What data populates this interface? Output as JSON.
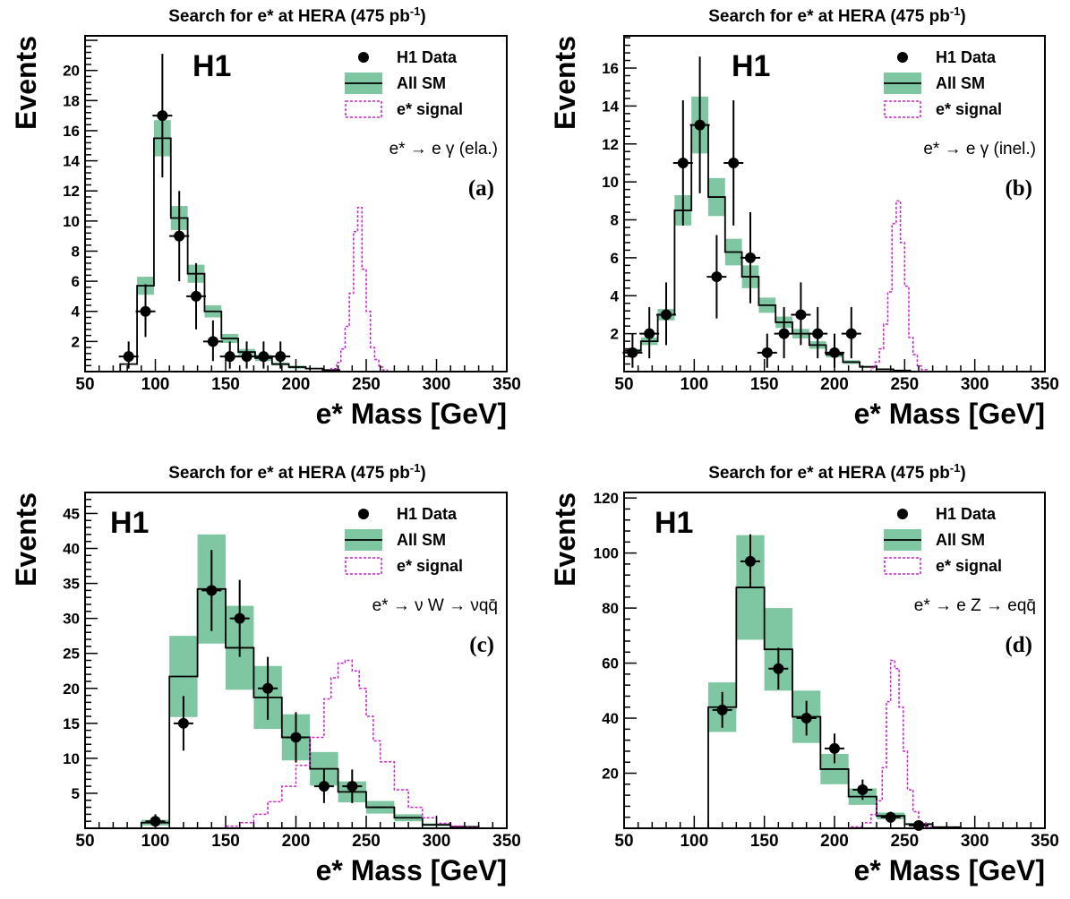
{
  "colors": {
    "sm_band": "#7fc6a2",
    "signal": "#cc22cc",
    "data": "#000000",
    "axis": "#000000"
  },
  "chart_data": [
    {
      "id": "a",
      "type": "histogram",
      "title": "Search for e* at HERA (475 pb",
      "title_sup": "-1",
      "title_end": ")",
      "experiment": "H1",
      "panel_tag": "(a)",
      "process": "e* → e γ (ela.)",
      "xlabel": "e* Mass [GeV]",
      "ylabel": "Events",
      "legend": [
        "H1 Data",
        "All SM",
        "e* signal"
      ],
      "xlim": [
        50,
        350
      ],
      "ylim": [
        0,
        22.3
      ],
      "xticks": [
        50,
        100,
        150,
        200,
        250,
        300,
        350
      ],
      "yticks": [
        2,
        4,
        6,
        8,
        10,
        12,
        14,
        16,
        18,
        20
      ],
      "sm_bins": [
        {
          "x0": 75,
          "x1": 87,
          "y": 0.5,
          "err": 0
        },
        {
          "x0": 87,
          "x1": 99,
          "y": 5.7,
          "err": 0.6
        },
        {
          "x0": 99,
          "x1": 111,
          "y": 15.5,
          "err": 1.2
        },
        {
          "x0": 111,
          "x1": 123,
          "y": 10.2,
          "err": 0.8
        },
        {
          "x0": 123,
          "x1": 135,
          "y": 6.5,
          "err": 0.6
        },
        {
          "x0": 135,
          "x1": 147,
          "y": 4.0,
          "err": 0.4
        },
        {
          "x0": 147,
          "x1": 159,
          "y": 2.2,
          "err": 0.3
        },
        {
          "x0": 159,
          "x1": 171,
          "y": 1.3,
          "err": 0.2
        },
        {
          "x0": 171,
          "x1": 183,
          "y": 0.9,
          "err": 0.2
        },
        {
          "x0": 183,
          "x1": 195,
          "y": 0.5,
          "err": 0.1
        },
        {
          "x0": 195,
          "x1": 207,
          "y": 0.3,
          "err": 0.1
        },
        {
          "x0": 207,
          "x1": 219,
          "y": 0.2,
          "err": 0.05
        },
        {
          "x0": 219,
          "x1": 231,
          "y": 0.1,
          "err": 0.05
        }
      ],
      "data_points": [
        {
          "x": 81,
          "y": 1,
          "ey_lo": 0.8,
          "ey_hi": 1.0
        },
        {
          "x": 93,
          "y": 4,
          "ey_lo": 1.7,
          "ey_hi": 1.8
        },
        {
          "x": 105,
          "y": 17,
          "ey_lo": 4.1,
          "ey_hi": 4.1
        },
        {
          "x": 117,
          "y": 9,
          "ey_lo": 3.0,
          "ey_hi": 3.0
        },
        {
          "x": 129,
          "y": 5,
          "ey_lo": 2.2,
          "ey_hi": 2.2
        },
        {
          "x": 141,
          "y": 2,
          "ey_lo": 1.3,
          "ey_hi": 1.4
        },
        {
          "x": 153,
          "y": 1,
          "ey_lo": 0.8,
          "ey_hi": 1.0
        },
        {
          "x": 165,
          "y": 1,
          "ey_lo": 0.8,
          "ey_hi": 1.0
        },
        {
          "x": 177,
          "y": 1,
          "ey_lo": 0.8,
          "ey_hi": 1.0
        },
        {
          "x": 189,
          "y": 1,
          "ey_lo": 0.8,
          "ey_hi": 1.0
        }
      ],
      "signal": {
        "x": [
          70,
          150,
          220,
          225,
          229,
          232,
          235,
          238,
          241,
          244,
          247,
          250,
          253,
          256,
          259,
          262,
          265,
          280,
          350
        ],
        "y": [
          0,
          0,
          0,
          0.2,
          0.6,
          1.5,
          3.0,
          5.2,
          9.3,
          10.9,
          6.8,
          4.0,
          1.6,
          0.8,
          0.3,
          0.1,
          0,
          0,
          0
        ]
      },
      "signal_xmin": 70
    },
    {
      "id": "b",
      "type": "histogram",
      "title": "Search for e* at HERA (475 pb",
      "title_sup": "-1",
      "title_end": ")",
      "experiment": "H1",
      "panel_tag": "(b)",
      "process": "e* → e γ (inel.)",
      "xlabel": "e* Mass [GeV]",
      "ylabel": "Events",
      "legend": [
        "H1 Data",
        "All SM",
        "e* signal"
      ],
      "xlim": [
        50,
        350
      ],
      "ylim": [
        0,
        17.7
      ],
      "xticks": [
        50,
        100,
        150,
        200,
        250,
        300,
        350
      ],
      "yticks": [
        2,
        4,
        6,
        8,
        10,
        12,
        14,
        16
      ],
      "sm_bins": [
        {
          "x0": 50,
          "x1": 62,
          "y": 1.1,
          "err": 0.1
        },
        {
          "x0": 62,
          "x1": 74,
          "y": 1.6,
          "err": 0.2
        },
        {
          "x0": 74,
          "x1": 86,
          "y": 3.0,
          "err": 0.3
        },
        {
          "x0": 86,
          "x1": 98,
          "y": 8.5,
          "err": 0.8
        },
        {
          "x0": 98,
          "x1": 110,
          "y": 13.0,
          "err": 1.5
        },
        {
          "x0": 110,
          "x1": 122,
          "y": 9.2,
          "err": 1.0
        },
        {
          "x0": 122,
          "x1": 134,
          "y": 6.3,
          "err": 0.7
        },
        {
          "x0": 134,
          "x1": 146,
          "y": 5.0,
          "err": 0.6
        },
        {
          "x0": 146,
          "x1": 158,
          "y": 3.5,
          "err": 0.4
        },
        {
          "x0": 158,
          "x1": 170,
          "y": 2.6,
          "err": 0.3
        },
        {
          "x0": 170,
          "x1": 182,
          "y": 2.0,
          "err": 0.25
        },
        {
          "x0": 182,
          "x1": 194,
          "y": 1.4,
          "err": 0.2
        },
        {
          "x0": 194,
          "x1": 206,
          "y": 0.9,
          "err": 0.15
        },
        {
          "x0": 206,
          "x1": 218,
          "y": 0.5,
          "err": 0.1
        },
        {
          "x0": 218,
          "x1": 230,
          "y": 0.25,
          "err": 0.05
        },
        {
          "x0": 230,
          "x1": 242,
          "y": 0.12,
          "err": 0.03
        },
        {
          "x0": 242,
          "x1": 254,
          "y": 0.06,
          "err": 0.02
        }
      ],
      "data_points": [
        {
          "x": 56,
          "y": 1,
          "ey_lo": 0.8,
          "ey_hi": 1.0
        },
        {
          "x": 68,
          "y": 2,
          "ey_lo": 1.3,
          "ey_hi": 1.4
        },
        {
          "x": 80,
          "y": 3,
          "ey_lo": 1.6,
          "ey_hi": 1.7
        },
        {
          "x": 92,
          "y": 11,
          "ey_lo": 3.3,
          "ey_hi": 3.3
        },
        {
          "x": 104,
          "y": 13,
          "ey_lo": 3.6,
          "ey_hi": 3.6
        },
        {
          "x": 116,
          "y": 5,
          "ey_lo": 2.2,
          "ey_hi": 2.2
        },
        {
          "x": 128,
          "y": 11,
          "ey_lo": 3.3,
          "ey_hi": 3.3
        },
        {
          "x": 140,
          "y": 6,
          "ey_lo": 2.4,
          "ey_hi": 2.4
        },
        {
          "x": 152,
          "y": 1,
          "ey_lo": 0.8,
          "ey_hi": 1.0
        },
        {
          "x": 164,
          "y": 2,
          "ey_lo": 1.3,
          "ey_hi": 1.4
        },
        {
          "x": 176,
          "y": 3,
          "ey_lo": 1.6,
          "ey_hi": 1.7
        },
        {
          "x": 188,
          "y": 2,
          "ey_lo": 1.3,
          "ey_hi": 1.4
        },
        {
          "x": 200,
          "y": 1,
          "ey_lo": 0.8,
          "ey_hi": 1.0
        },
        {
          "x": 212,
          "y": 2,
          "ey_lo": 1.3,
          "ey_hi": 1.4
        }
      ],
      "signal": {
        "x": [
          50,
          150,
          222,
          226,
          229,
          232,
          235,
          238,
          241,
          244,
          247,
          250,
          253,
          256,
          259,
          262,
          266,
          280,
          350
        ],
        "y": [
          0,
          0,
          0,
          0.2,
          0.5,
          1.2,
          2.5,
          4.2,
          7.8,
          9.0,
          6.8,
          4.5,
          1.8,
          0.9,
          0.3,
          0.1,
          0,
          0,
          0
        ]
      },
      "signal_xmin": 50
    },
    {
      "id": "c",
      "type": "histogram",
      "title": "Search for e* at HERA (475 pb",
      "title_sup": "-1",
      "title_end": ")",
      "experiment": "H1",
      "panel_tag": "(c)",
      "process": "e* → ν W → νqq̄",
      "xlabel": "e* Mass [GeV]",
      "ylabel": "Events",
      "legend": [
        "H1 Data",
        "All SM",
        "e* signal"
      ],
      "xlim": [
        50,
        350
      ],
      "ylim": [
        0,
        48
      ],
      "xticks": [
        50,
        100,
        150,
        200,
        250,
        300,
        350
      ],
      "yticks": [
        5,
        10,
        15,
        20,
        25,
        30,
        35,
        40,
        45
      ],
      "sm_bins": [
        {
          "x0": 90,
          "x1": 110,
          "y": 0.8,
          "err": 0.4
        },
        {
          "x0": 110,
          "x1": 130,
          "y": 21.7,
          "err": 5.8
        },
        {
          "x0": 130,
          "x1": 150,
          "y": 34.2,
          "err": 7.8
        },
        {
          "x0": 150,
          "x1": 170,
          "y": 25.8,
          "err": 6.0
        },
        {
          "x0": 170,
          "x1": 190,
          "y": 18.7,
          "err": 4.5
        },
        {
          "x0": 190,
          "x1": 210,
          "y": 13.0,
          "err": 3.3
        },
        {
          "x0": 210,
          "x1": 230,
          "y": 8.5,
          "err": 2.4
        },
        {
          "x0": 230,
          "x1": 250,
          "y": 5.2,
          "err": 1.5
        },
        {
          "x0": 250,
          "x1": 270,
          "y": 3.0,
          "err": 0.9
        },
        {
          "x0": 270,
          "x1": 290,
          "y": 1.5,
          "err": 0.5
        },
        {
          "x0": 290,
          "x1": 310,
          "y": 0.5,
          "err": 0.2
        },
        {
          "x0": 310,
          "x1": 330,
          "y": 0.2,
          "err": 0.1
        }
      ],
      "data_points": [
        {
          "x": 100,
          "y": 1,
          "ey_lo": 0.8,
          "ey_hi": 1.0
        },
        {
          "x": 120,
          "y": 15,
          "ey_lo": 3.9,
          "ey_hi": 3.9
        },
        {
          "x": 140,
          "y": 34,
          "ey_lo": 5.8,
          "ey_hi": 5.8
        },
        {
          "x": 160,
          "y": 30,
          "ey_lo": 5.5,
          "ey_hi": 5.5
        },
        {
          "x": 180,
          "y": 20,
          "ey_lo": 4.5,
          "ey_hi": 4.5
        },
        {
          "x": 200,
          "y": 13,
          "ey_lo": 3.6,
          "ey_hi": 3.6
        },
        {
          "x": 220,
          "y": 6,
          "ey_lo": 2.4,
          "ey_hi": 2.4
        },
        {
          "x": 240,
          "y": 6,
          "ey_lo": 2.4,
          "ey_hi": 2.4
        }
      ],
      "signal": {
        "x": [
          50,
          140,
          150,
          160,
          170,
          180,
          190,
          200,
          210,
          220,
          225,
          230,
          235,
          240,
          245,
          250,
          255,
          260,
          270,
          280,
          290,
          300,
          310,
          320,
          330,
          350
        ],
        "y": [
          0,
          0,
          0.3,
          0.8,
          2.0,
          3.8,
          6.0,
          9.0,
          13.0,
          18.5,
          21.5,
          23.6,
          24.0,
          22.5,
          20.0,
          16.0,
          12.5,
          9.5,
          5.5,
          3.0,
          1.5,
          0.7,
          0.3,
          0.1,
          0,
          0
        ]
      },
      "signal_xmin": 50
    },
    {
      "id": "d",
      "type": "histogram",
      "title": "Search for e* at HERA (475 pb",
      "title_sup": "-1",
      "title_end": ")",
      "experiment": "H1",
      "panel_tag": "(d)",
      "process": "e* → e Z → eqq̄",
      "xlabel": "e* Mass [GeV]",
      "ylabel": "Events",
      "legend": [
        "H1 Data",
        "All SM",
        "e* signal"
      ],
      "xlim": [
        50,
        350
      ],
      "ylim": [
        0,
        122
      ],
      "xticks": [
        50,
        100,
        150,
        200,
        250,
        300,
        350
      ],
      "yticks": [
        20,
        40,
        60,
        80,
        100,
        120
      ],
      "sm_bins": [
        {
          "x0": 110,
          "x1": 130,
          "y": 44,
          "err": 9
        },
        {
          "x0": 130,
          "x1": 150,
          "y": 87.5,
          "err": 19
        },
        {
          "x0": 150,
          "x1": 170,
          "y": 65,
          "err": 15
        },
        {
          "x0": 170,
          "x1": 190,
          "y": 40.5,
          "err": 9.5
        },
        {
          "x0": 190,
          "x1": 210,
          "y": 21.5,
          "err": 5.5
        },
        {
          "x0": 210,
          "x1": 230,
          "y": 11.5,
          "err": 3.0
        },
        {
          "x0": 230,
          "x1": 250,
          "y": 4.5,
          "err": 1.2
        },
        {
          "x0": 250,
          "x1": 270,
          "y": 1.5,
          "err": 0.4
        },
        {
          "x0": 270,
          "x1": 290,
          "y": 0.4,
          "err": 0.1
        }
      ],
      "data_points": [
        {
          "x": 120,
          "y": 43,
          "ey_lo": 6.5,
          "ey_hi": 6.5
        },
        {
          "x": 140,
          "y": 97,
          "ey_lo": 9.8,
          "ey_hi": 9.8
        },
        {
          "x": 160,
          "y": 58,
          "ey_lo": 7.6,
          "ey_hi": 7.6
        },
        {
          "x": 180,
          "y": 40,
          "ey_lo": 6.3,
          "ey_hi": 6.3
        },
        {
          "x": 200,
          "y": 29,
          "ey_lo": 5.4,
          "ey_hi": 5.4
        },
        {
          "x": 220,
          "y": 14,
          "ey_lo": 3.7,
          "ey_hi": 3.7
        },
        {
          "x": 240,
          "y": 4,
          "ey_lo": 2.0,
          "ey_hi": 2.0
        },
        {
          "x": 260,
          "y": 1,
          "ey_lo": 0.8,
          "ey_hi": 1.0
        }
      ],
      "signal": {
        "x": [
          50,
          150,
          200,
          212,
          220,
          226,
          230,
          234,
          237,
          240,
          243,
          246,
          249,
          252,
          256,
          260,
          265,
          270,
          350
        ],
        "y": [
          0,
          0,
          0,
          0.5,
          2,
          5,
          10,
          22,
          46,
          61,
          58,
          44,
          28,
          14,
          6,
          2,
          0.5,
          0,
          0
        ]
      },
      "signal_xmin": 50
    }
  ]
}
